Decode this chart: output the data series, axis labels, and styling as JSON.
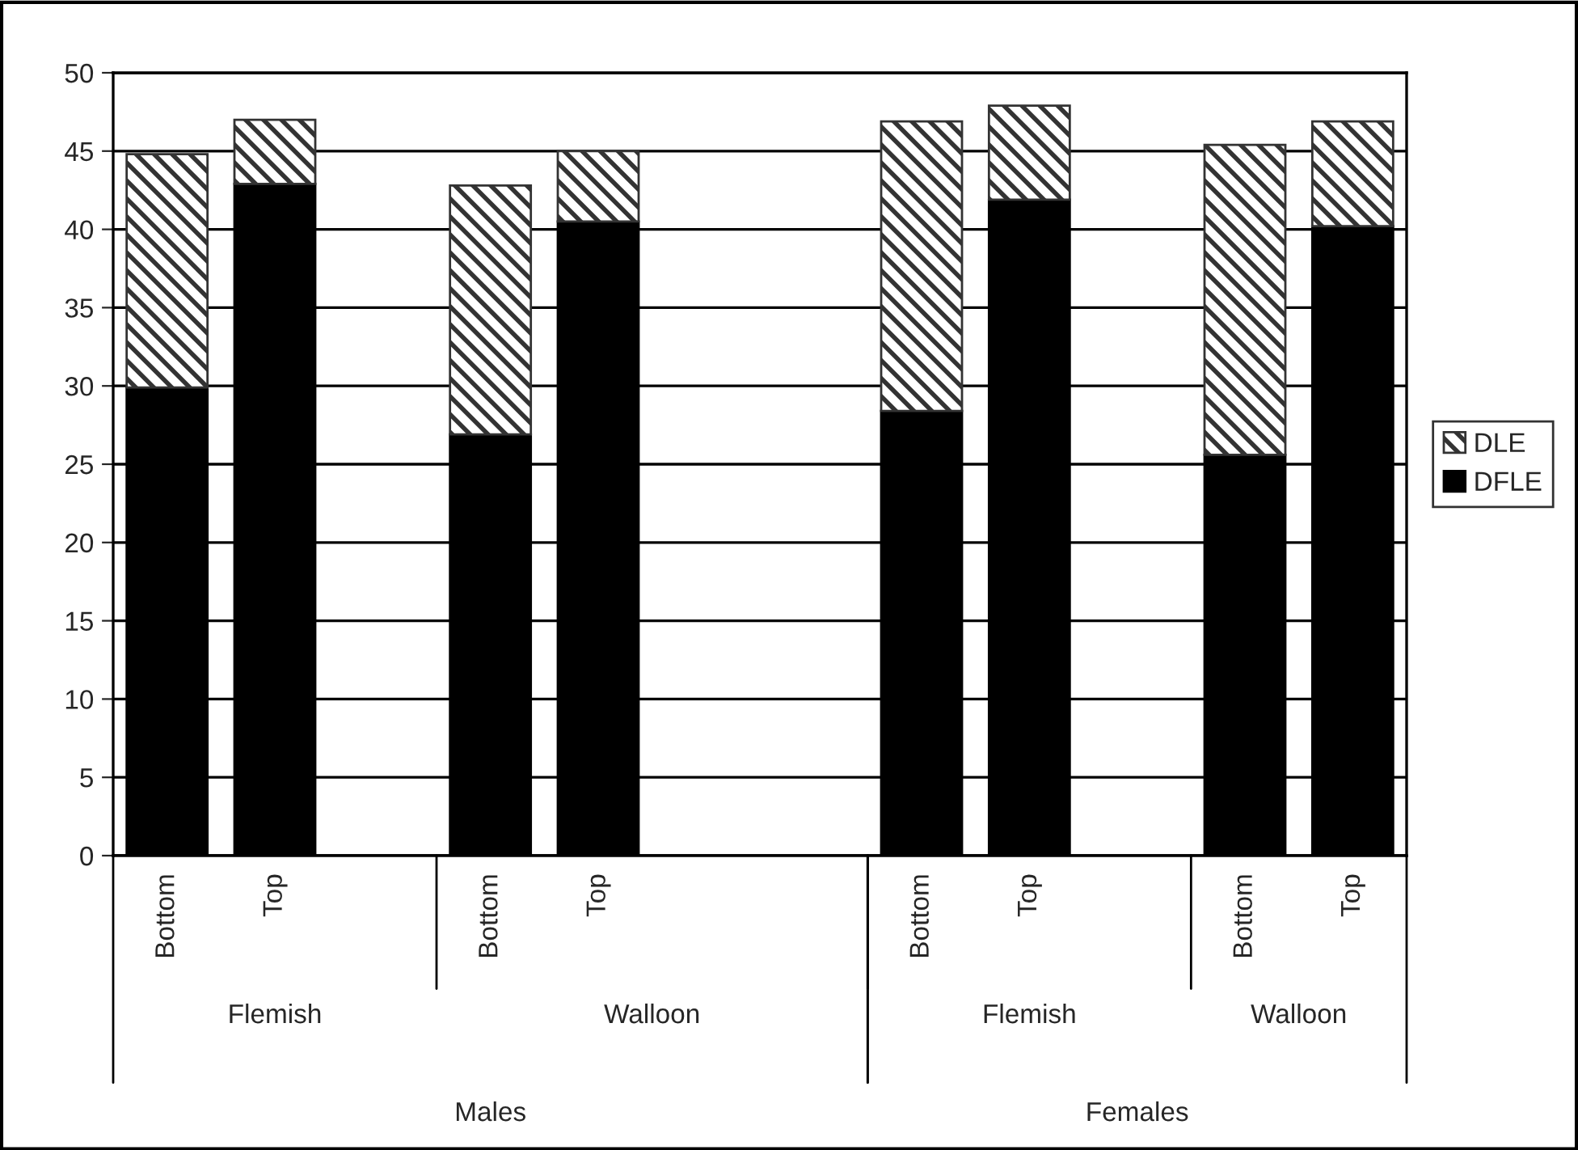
{
  "chart_data": {
    "type": "bar",
    "stacked": true,
    "categories": [
      "Bottom",
      "Top",
      null,
      "Bottom",
      "Top",
      null,
      null,
      "Bottom",
      "Top",
      null,
      "Bottom",
      "Top"
    ],
    "series": [
      {
        "name": "DFLE",
        "color": "#000000",
        "values": [
          29.9,
          42.9,
          null,
          26.9,
          40.5,
          null,
          null,
          28.4,
          41.9,
          null,
          25.6,
          40.2
        ]
      },
      {
        "name": "DLE",
        "color": "#333333",
        "values": [
          14.9,
          4.1,
          null,
          15.9,
          4.5,
          null,
          null,
          18.5,
          6.0,
          null,
          19.8,
          6.7
        ]
      }
    ],
    "ylim": [
      0,
      50
    ],
    "yticks": [
      0,
      5,
      10,
      15,
      20,
      25,
      30,
      35,
      40,
      45,
      50
    ],
    "grid": "y",
    "legend": "right",
    "annotations": [
      "Flemish",
      "Walloon",
      "Flemish",
      "Walloon",
      "Males",
      "Females"
    ]
  }
}
